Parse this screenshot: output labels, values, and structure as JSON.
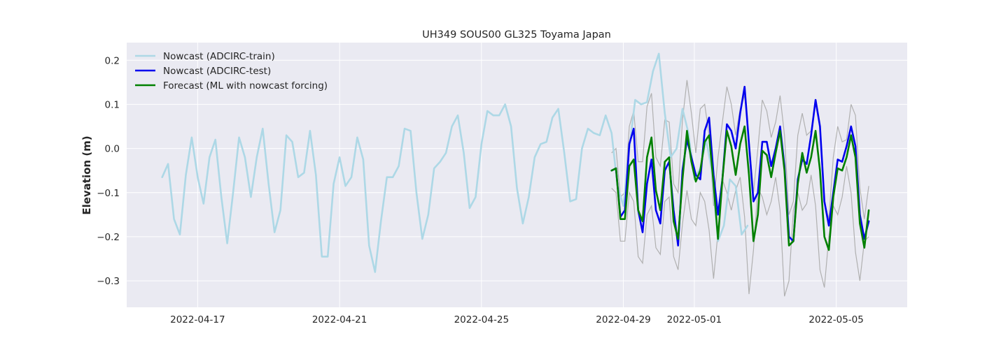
{
  "chart_data": {
    "type": "line",
    "title": "UH349 SOUS00 GL325 Toyama Japan",
    "xlabel": "",
    "ylabel": "Elevation (m)",
    "xlim": [
      "2022-04-15T00:00",
      "2022-05-07T00:00"
    ],
    "ylim": [
      -0.36,
      0.24
    ],
    "x_ticks": [
      "2022-04-17",
      "2022-04-21",
      "2022-04-25",
      "2022-04-29",
      "2022-05-01",
      "2022-05-05"
    ],
    "y_ticks": [
      -0.3,
      -0.2,
      -0.1,
      0.0,
      0.1,
      0.2
    ],
    "y_tick_labels": [
      "−0.3",
      "−0.2",
      "−0.1",
      "0.0",
      "0.1",
      "0.2"
    ],
    "grid": true,
    "legend_position": "top-left",
    "series": [
      {
        "name": "Nowcast (ADCIRC-train)",
        "color": "#add8e6",
        "x_start": "2022-04-16T00:00",
        "step_hours": 4,
        "values": [
          -0.065,
          -0.035,
          -0.16,
          -0.195,
          -0.06,
          0.025,
          -0.065,
          -0.125,
          -0.02,
          0.02,
          -0.11,
          -0.215,
          -0.1,
          0.025,
          -0.02,
          -0.11,
          -0.02,
          0.045,
          -0.08,
          -0.19,
          -0.14,
          0.03,
          0.015,
          -0.065,
          -0.055,
          0.04,
          -0.06,
          -0.245,
          -0.245,
          -0.08,
          -0.02,
          -0.085,
          -0.065,
          0.025,
          -0.025,
          -0.22,
          -0.28,
          -0.165,
          -0.065,
          -0.065,
          -0.04,
          0.045,
          0.04,
          -0.1,
          -0.205,
          -0.15,
          -0.045,
          -0.03,
          -0.01,
          0.05,
          0.075,
          -0.01,
          -0.135,
          -0.11,
          0.01,
          0.085,
          0.075,
          0.075,
          0.1,
          0.05,
          -0.09,
          -0.17,
          -0.11,
          -0.02,
          0.01,
          0.015,
          0.07,
          0.09,
          -0.01,
          -0.12,
          -0.115,
          0.0,
          0.045,
          0.035,
          0.03,
          0.075,
          0.035,
          -0.085,
          -0.13,
          0.0,
          0.11,
          0.1,
          0.105,
          0.175,
          0.215,
          0.08,
          -0.02,
          0.0,
          0.09,
          0.035,
          -0.07,
          -0.045,
          0.02,
          -0.055,
          -0.21,
          -0.175,
          -0.07,
          -0.085,
          -0.195,
          -0.175
        ]
      },
      {
        "name": "Nowcast (ADCIRC-test)",
        "color": "#0000ee",
        "x_start": "2022-04-28T16:00",
        "step_hours": 3,
        "values": [
          -0.05,
          -0.045,
          -0.155,
          -0.14,
          0.01,
          0.045,
          -0.14,
          -0.19,
          -0.08,
          -0.025,
          -0.14,
          -0.17,
          -0.05,
          -0.03,
          -0.14,
          -0.22,
          -0.05,
          0.02,
          -0.02,
          -0.06,
          -0.07,
          0.04,
          0.07,
          -0.06,
          -0.15,
          -0.07,
          0.055,
          0.04,
          0.0,
          0.08,
          0.14,
          0.01,
          -0.12,
          -0.1,
          0.015,
          0.015,
          -0.04,
          0.0,
          0.05,
          -0.04,
          -0.2,
          -0.21,
          -0.07,
          -0.025,
          -0.035,
          0.03,
          0.11,
          0.05,
          -0.12,
          -0.175,
          -0.1,
          -0.025,
          -0.03,
          0.005,
          0.05,
          0.005,
          -0.15,
          -0.205,
          -0.165
        ]
      },
      {
        "name": "Forecast (ML with nowcast forcing)",
        "color": "#008000",
        "x_start": "2022-04-28T16:00",
        "step_hours": 3,
        "values": [
          -0.05,
          -0.045,
          -0.16,
          -0.16,
          -0.04,
          -0.025,
          -0.14,
          -0.165,
          -0.02,
          0.025,
          -0.095,
          -0.14,
          -0.03,
          -0.02,
          -0.165,
          -0.205,
          -0.07,
          0.04,
          -0.03,
          -0.075,
          -0.05,
          0.015,
          0.03,
          -0.08,
          -0.205,
          -0.07,
          0.04,
          0.005,
          -0.06,
          0.01,
          0.05,
          -0.06,
          -0.21,
          -0.15,
          -0.005,
          -0.015,
          -0.065,
          -0.01,
          0.04,
          -0.05,
          -0.22,
          -0.21,
          -0.08,
          -0.01,
          -0.055,
          -0.02,
          0.04,
          -0.05,
          -0.2,
          -0.23,
          -0.11,
          -0.045,
          -0.05,
          -0.02,
          0.03,
          -0.02,
          -0.17,
          -0.225,
          -0.14
        ]
      }
    ],
    "band": {
      "color": "#b0b0b0",
      "x_start": "2022-04-28T16:00",
      "step_hours": 3,
      "upper": [
        -0.01,
        0.0,
        -0.11,
        -0.1,
        0.05,
        0.085,
        -0.03,
        -0.03,
        0.095,
        0.125,
        -0.02,
        -0.04,
        0.065,
        0.06,
        -0.08,
        -0.1,
        0.065,
        0.155,
        0.08,
        -0.01,
        0.09,
        0.1,
        0.03,
        -0.13,
        -0.02,
        0.06,
        0.14,
        0.1,
        0.03,
        0.09,
        0.12,
        0.02,
        -0.1,
        0.0,
        0.11,
        0.085,
        0.025,
        0.06,
        0.12,
        0.03,
        -0.15,
        -0.12,
        0.03,
        0.08,
        0.03,
        0.04,
        0.1,
        0.05,
        -0.12,
        -0.16,
        -0.02,
        0.05,
        0.015,
        0.02,
        0.1,
        0.075,
        -0.09,
        -0.16,
        -0.085
      ],
      "lower": [
        -0.09,
        -0.1,
        -0.21,
        -0.21,
        -0.1,
        -0.12,
        -0.245,
        -0.26,
        -0.15,
        -0.13,
        -0.225,
        -0.24,
        -0.12,
        -0.11,
        -0.245,
        -0.275,
        -0.17,
        -0.095,
        -0.16,
        -0.175,
        -0.1,
        -0.12,
        -0.185,
        -0.295,
        -0.19,
        -0.07,
        -0.1,
        -0.14,
        -0.095,
        -0.065,
        -0.155,
        -0.33,
        -0.23,
        -0.09,
        -0.11,
        -0.15,
        -0.12,
        -0.065,
        -0.14,
        -0.335,
        -0.3,
        -0.14,
        -0.1,
        -0.14,
        -0.125,
        -0.06,
        -0.13,
        -0.275,
        -0.315,
        -0.2,
        -0.13,
        -0.15,
        -0.11,
        -0.04,
        -0.1,
        -0.235,
        -0.3,
        -0.21,
        -0.2
      ]
    }
  }
}
